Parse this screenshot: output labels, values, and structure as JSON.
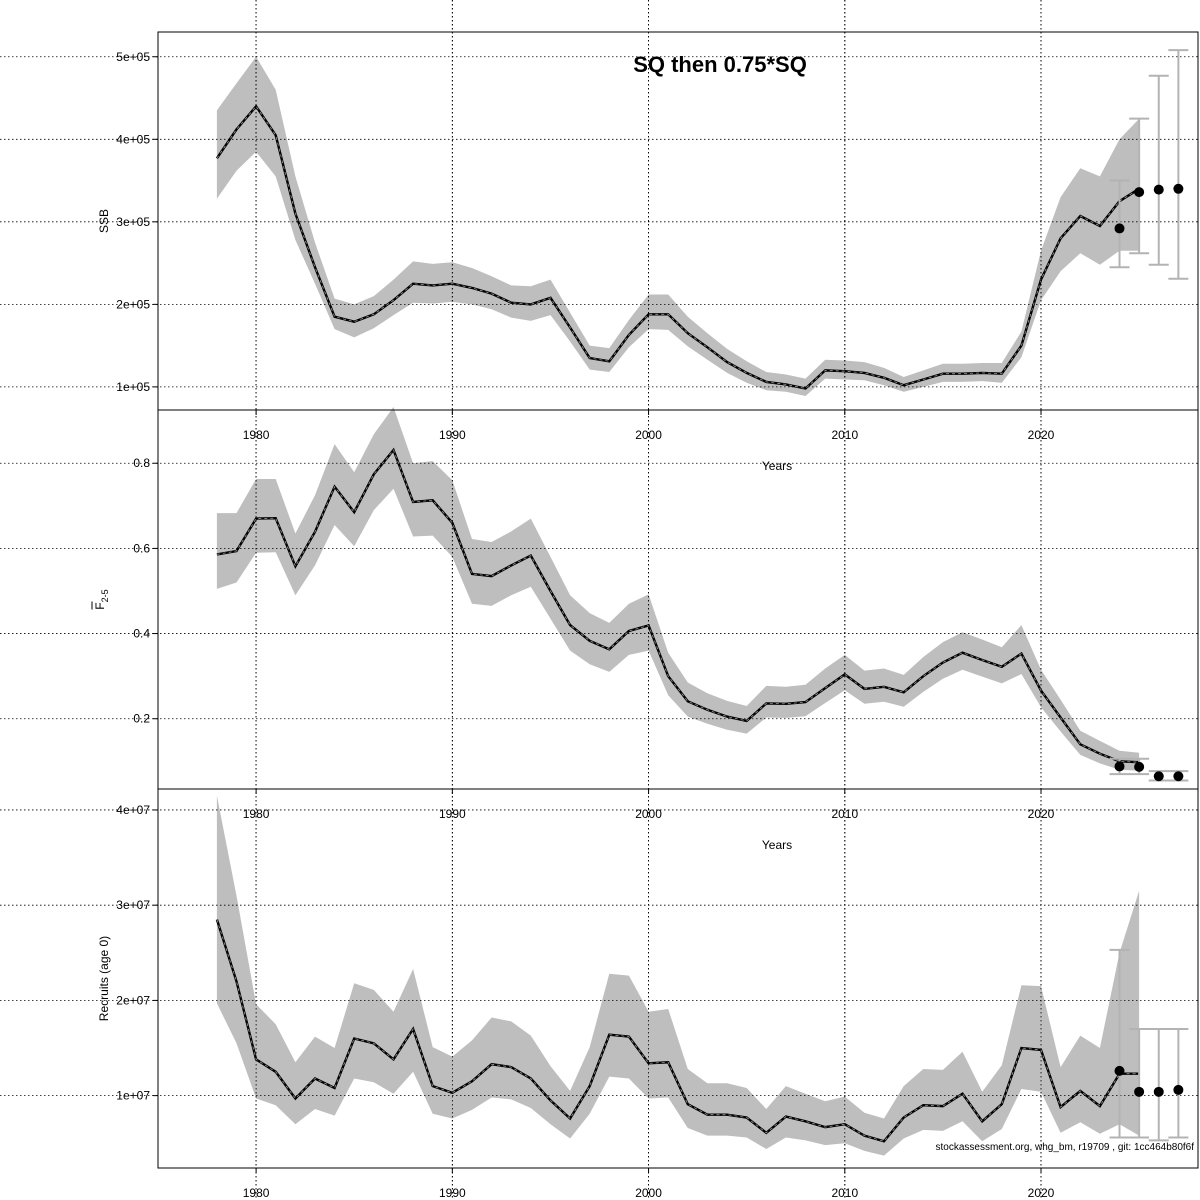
{
  "title": "SQ then 0.75*SQ",
  "credit": "stockassessment.org, whg_bm, r19709 , git: 1cc464b80f6f",
  "colors": {
    "band": "#bebebe",
    "line": "#000000",
    "whisker": "#b3b3b3",
    "grid": "#000000"
  },
  "chart_data": [
    {
      "type": "line",
      "name": "ssb",
      "xlim": [
        1975,
        2028
      ],
      "ylim": [
        72000,
        530000
      ],
      "xticks": [
        1980,
        1990,
        2000,
        2010,
        2020
      ],
      "xtick_labels": [
        "1980",
        "1990",
        "2000",
        "2010",
        "2020"
      ],
      "yticks": [
        100000,
        200000,
        300000,
        400000,
        500000
      ],
      "ytick_labels": [
        "1e+05",
        "2e+05",
        "3e+05",
        "4e+05",
        "5e+05"
      ],
      "xlabel": "Years",
      "ylabel": "SSB",
      "grid": true,
      "x": [
        1978,
        1979,
        1980,
        1981,
        1982,
        1983,
        1984,
        1985,
        1986,
        1987,
        1988,
        1989,
        1990,
        1991,
        1992,
        1993,
        1994,
        1995,
        1996,
        1997,
        1998,
        1999,
        2000,
        2001,
        2002,
        2003,
        2004,
        2005,
        2006,
        2007,
        2008,
        2009,
        2010,
        2011,
        2012,
        2013,
        2014,
        2015,
        2016,
        2017,
        2018,
        2019,
        2020,
        2021,
        2022,
        2023,
        2024,
        2025
      ],
      "estimate": [
        377000,
        412000,
        440000,
        405000,
        310000,
        245000,
        185000,
        179000,
        188000,
        205000,
        225000,
        223000,
        225000,
        220000,
        213000,
        202000,
        200000,
        208000,
        172000,
        135000,
        131000,
        163000,
        188000,
        188000,
        165000,
        148000,
        130000,
        117000,
        106000,
        103000,
        98000,
        120000,
        119000,
        117000,
        111000,
        102000,
        109000,
        116000,
        116000,
        117000,
        116000,
        150000,
        230000,
        280000,
        307000,
        295000,
        325000,
        340000
      ],
      "lower": [
        328000,
        362000,
        385000,
        355000,
        278000,
        225000,
        170000,
        160000,
        171000,
        187000,
        202000,
        201000,
        203000,
        200000,
        194000,
        184000,
        180000,
        187000,
        155000,
        121000,
        118000,
        148000,
        170000,
        169000,
        149000,
        133000,
        117000,
        105000,
        96000,
        94000,
        89000,
        110000,
        109000,
        108000,
        102000,
        94000,
        100000,
        106000,
        106000,
        107000,
        105000,
        136000,
        205000,
        240000,
        262000,
        248000,
        265000,
        265000
      ],
      "upper": [
        435000,
        468000,
        500000,
        460000,
        355000,
        275000,
        207000,
        200000,
        210000,
        230000,
        252000,
        249000,
        251000,
        244000,
        234000,
        223000,
        222000,
        230000,
        190000,
        150000,
        147000,
        181000,
        212000,
        212000,
        185000,
        165000,
        146000,
        131000,
        118000,
        115000,
        110000,
        133000,
        132000,
        130000,
        123000,
        112000,
        120000,
        128000,
        128000,
        129000,
        129000,
        167000,
        265000,
        330000,
        365000,
        355000,
        400000,
        425000
      ],
      "forecast": [
        {
          "year": 2024,
          "median": 292000,
          "low": 245000,
          "high": 350000
        },
        {
          "year": 2025,
          "median": 336000,
          "low": 262000,
          "high": 425000
        },
        {
          "year": 2026,
          "median": 339000,
          "low": 248000,
          "high": 477000
        },
        {
          "year": 2027,
          "median": 340000,
          "low": 231000,
          "high": 508000
        }
      ]
    },
    {
      "type": "line",
      "name": "fbar",
      "xlim": [
        1975,
        2028
      ],
      "ylim": [
        0.035,
        0.925
      ],
      "xticks": [
        1980,
        1990,
        2000,
        2010,
        2020
      ],
      "xtick_labels": [
        "1980",
        "1990",
        "2000",
        "2010",
        "2020"
      ],
      "yticks": [
        0.2,
        0.4,
        0.6,
        0.8
      ],
      "ytick_labels": [
        "0.2",
        "0.4",
        "0.6",
        "0.8"
      ],
      "xlabel": "Years",
      "ylabel": "F",
      "ylabel_sub": "2-5",
      "grid": true,
      "x": [
        1978,
        1979,
        1980,
        1981,
        1982,
        1983,
        1984,
        1985,
        1986,
        1987,
        1988,
        1989,
        1990,
        1991,
        1992,
        1993,
        1994,
        1995,
        1996,
        1997,
        1998,
        1999,
        2000,
        2001,
        2002,
        2003,
        2004,
        2005,
        2006,
        2007,
        2008,
        2009,
        2010,
        2011,
        2012,
        2013,
        2014,
        2015,
        2016,
        2017,
        2018,
        2019,
        2020,
        2021,
        2022,
        2023,
        2024,
        2025
      ],
      "estimate": [
        0.586,
        0.594,
        0.67,
        0.671,
        0.558,
        0.639,
        0.745,
        0.685,
        0.774,
        0.831,
        0.709,
        0.713,
        0.66,
        0.54,
        0.535,
        0.56,
        0.583,
        0.5,
        0.42,
        0.383,
        0.363,
        0.406,
        0.419,
        0.3,
        0.241,
        0.221,
        0.205,
        0.195,
        0.236,
        0.235,
        0.239,
        0.272,
        0.304,
        0.27,
        0.275,
        0.262,
        0.3,
        0.332,
        0.355,
        0.338,
        0.322,
        0.353,
        0.266,
        0.203,
        0.14,
        0.118,
        0.1,
        0.098
      ],
      "lower": [
        0.505,
        0.52,
        0.59,
        0.591,
        0.49,
        0.56,
        0.655,
        0.605,
        0.69,
        0.74,
        0.628,
        0.63,
        0.58,
        0.47,
        0.465,
        0.49,
        0.51,
        0.435,
        0.36,
        0.328,
        0.31,
        0.35,
        0.36,
        0.255,
        0.205,
        0.188,
        0.174,
        0.165,
        0.203,
        0.202,
        0.206,
        0.237,
        0.267,
        0.235,
        0.24,
        0.228,
        0.263,
        0.294,
        0.315,
        0.299,
        0.283,
        0.305,
        0.227,
        0.17,
        0.115,
        0.095,
        0.08,
        0.078
      ],
      "upper": [
        0.683,
        0.683,
        0.763,
        0.763,
        0.635,
        0.725,
        0.845,
        0.779,
        0.868,
        0.932,
        0.8,
        0.805,
        0.76,
        0.622,
        0.615,
        0.64,
        0.67,
        0.58,
        0.49,
        0.448,
        0.425,
        0.47,
        0.492,
        0.355,
        0.285,
        0.26,
        0.242,
        0.23,
        0.277,
        0.275,
        0.28,
        0.318,
        0.35,
        0.313,
        0.318,
        0.303,
        0.345,
        0.38,
        0.403,
        0.386,
        0.368,
        0.42,
        0.315,
        0.245,
        0.172,
        0.148,
        0.125,
        0.12
      ],
      "forecast": [
        {
          "year": 2024,
          "median": 0.088,
          "low": 0.07,
          "high": 0.106
        },
        {
          "year": 2025,
          "median": 0.087,
          "low": 0.07,
          "high": 0.106
        },
        {
          "year": 2026,
          "median": 0.065,
          "low": 0.055,
          "high": 0.077
        },
        {
          "year": 2027,
          "median": 0.065,
          "low": 0.055,
          "high": 0.077
        }
      ]
    },
    {
      "type": "line",
      "name": "recruits",
      "xlim": [
        1975,
        2028
      ],
      "ylim": [
        2400000,
        42200000
      ],
      "xticks": [
        1980,
        1990,
        2000,
        2010,
        2020
      ],
      "xtick_labels": [
        "1980",
        "1990",
        "2000",
        "2010",
        "2020"
      ],
      "yticks": [
        10000000,
        20000000,
        30000000,
        40000000
      ],
      "ytick_labels": [
        "1e+07",
        "2e+07",
        "3e+07",
        "4e+07"
      ],
      "xlabel": "",
      "ylabel": "Recruits (age 0)",
      "grid": true,
      "x": [
        1978,
        1979,
        1980,
        1981,
        1982,
        1983,
        1984,
        1985,
        1986,
        1987,
        1988,
        1989,
        1990,
        1991,
        1992,
        1993,
        1994,
        1995,
        1996,
        1997,
        1998,
        1999,
        2000,
        2001,
        2002,
        2003,
        2004,
        2005,
        2006,
        2007,
        2008,
        2009,
        2010,
        2011,
        2012,
        2013,
        2014,
        2015,
        2016,
        2017,
        2018,
        2019,
        2020,
        2021,
        2022,
        2023,
        2024,
        2025
      ],
      "estimate": [
        28500000,
        22000000,
        13800000,
        12500000,
        9700000,
        11800000,
        10800000,
        16000000,
        15500000,
        13800000,
        17000000,
        11000000,
        10300000,
        11500000,
        13300000,
        13000000,
        11800000,
        9500000,
        7600000,
        11000000,
        16400000,
        16200000,
        13400000,
        13500000,
        9100000,
        8000000,
        8000000,
        7700000,
        6100000,
        7800000,
        7300000,
        6700000,
        7000000,
        5800000,
        5200000,
        7700000,
        9000000,
        8900000,
        10200000,
        7300000,
        9100000,
        15000000,
        14800000,
        8800000,
        10500000,
        8900000,
        12300000,
        12300000
      ],
      "lower": [
        19700000,
        15500000,
        9700000,
        9000000,
        7000000,
        8600000,
        7900000,
        11800000,
        11400000,
        10200000,
        12500000,
        8100000,
        7600000,
        8500000,
        9800000,
        9600000,
        8700000,
        7000000,
        5500000,
        8100000,
        12000000,
        11800000,
        9700000,
        9800000,
        6600000,
        5800000,
        5800000,
        5600000,
        4400000,
        5600000,
        5300000,
        4800000,
        5000000,
        4200000,
        3700000,
        5500000,
        6400000,
        6300000,
        7300000,
        5200000,
        6500000,
        10700000,
        10400000,
        6100000,
        7200000,
        6000000,
        7000000,
        5800000
      ],
      "upper": [
        41500000,
        31000000,
        19600000,
        17500000,
        13500000,
        16200000,
        15000000,
        21800000,
        21100000,
        18800000,
        23300000,
        15100000,
        14100000,
        15800000,
        18200000,
        17800000,
        16300000,
        13100000,
        10500000,
        15100000,
        22800000,
        22600000,
        18800000,
        19100000,
        12800000,
        11300000,
        11300000,
        10800000,
        8600000,
        11000000,
        10200000,
        9400000,
        9900000,
        8200000,
        7600000,
        11000000,
        12800000,
        12700000,
        14600000,
        10400000,
        13200000,
        21600000,
        21500000,
        13000000,
        16300000,
        15000000,
        25000000,
        31500000
      ],
      "forecast": [
        {
          "year": 2024,
          "median": 12600000,
          "low": 5600000,
          "high": 25300000
        },
        {
          "year": 2025,
          "median": 10400000,
          "low": 5600000,
          "high": 17000000
        },
        {
          "year": 2026,
          "median": 10400000,
          "low": 5300000,
          "high": 17000000
        },
        {
          "year": 2027,
          "median": 10600000,
          "low": 5600000,
          "high": 17000000
        }
      ]
    }
  ]
}
